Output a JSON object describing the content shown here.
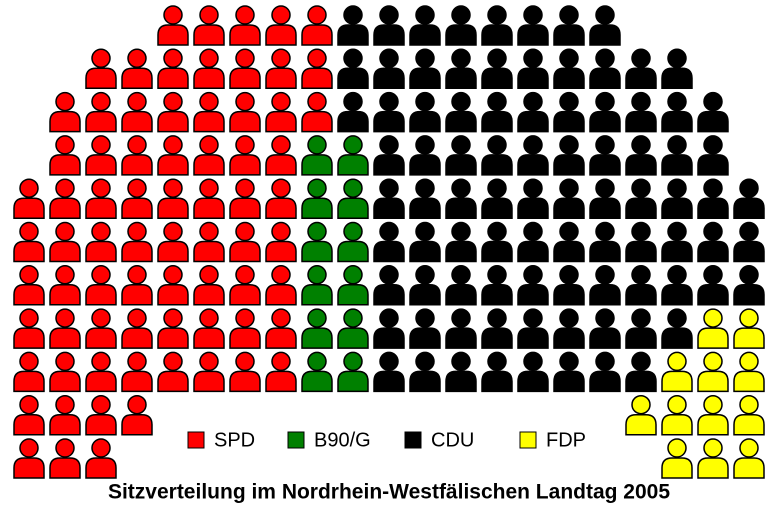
{
  "chart_data": {
    "type": "parliament",
    "title": "Sitzverteilung im Nordrhein-Westfälischen Landtag 2005",
    "categories": [
      "SPD",
      "B90/G",
      "CDU",
      "FDP"
    ],
    "values": [
      74,
      12,
      89,
      12
    ],
    "colors": [
      "#ff0000",
      "#008000",
      "#000000",
      "#ffff00"
    ]
  }
}
